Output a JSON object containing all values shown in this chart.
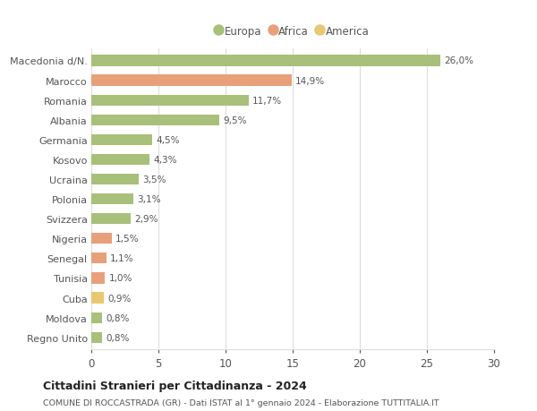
{
  "categories": [
    "Macedonia d/N.",
    "Marocco",
    "Romania",
    "Albania",
    "Germania",
    "Kosovo",
    "Ucraina",
    "Polonia",
    "Svizzera",
    "Nigeria",
    "Senegal",
    "Tunisia",
    "Cuba",
    "Moldova",
    "Regno Unito"
  ],
  "values": [
    26.0,
    14.9,
    11.7,
    9.5,
    4.5,
    4.3,
    3.5,
    3.1,
    2.9,
    1.5,
    1.1,
    1.0,
    0.9,
    0.8,
    0.8
  ],
  "labels": [
    "26,0%",
    "14,9%",
    "11,7%",
    "9,5%",
    "4,5%",
    "4,3%",
    "3,5%",
    "3,1%",
    "2,9%",
    "1,5%",
    "1,1%",
    "1,0%",
    "0,9%",
    "0,8%",
    "0,8%"
  ],
  "colors": [
    "#a8c07a",
    "#e8a07a",
    "#a8c07a",
    "#a8c07a",
    "#a8c07a",
    "#a8c07a",
    "#a8c07a",
    "#a8c07a",
    "#a8c07a",
    "#e8a07a",
    "#e8a07a",
    "#e8a07a",
    "#e8c870",
    "#a8c07a",
    "#a8c07a"
  ],
  "legend_labels": [
    "Europa",
    "Africa",
    "America"
  ],
  "legend_colors": [
    "#a8c07a",
    "#e8a07a",
    "#e8c870"
  ],
  "title1": "Cittadini Stranieri per Cittadinanza - 2024",
  "title2": "COMUNE DI ROCCASTRADA (GR) - Dati ISTAT al 1° gennaio 2024 - Elaborazione TUTTITALIA.IT",
  "xlim": [
    0,
    30
  ],
  "xticks": [
    0,
    5,
    10,
    15,
    20,
    25,
    30
  ],
  "background_color": "#ffffff",
  "grid_color": "#dddddd",
  "bar_height": 0.55
}
